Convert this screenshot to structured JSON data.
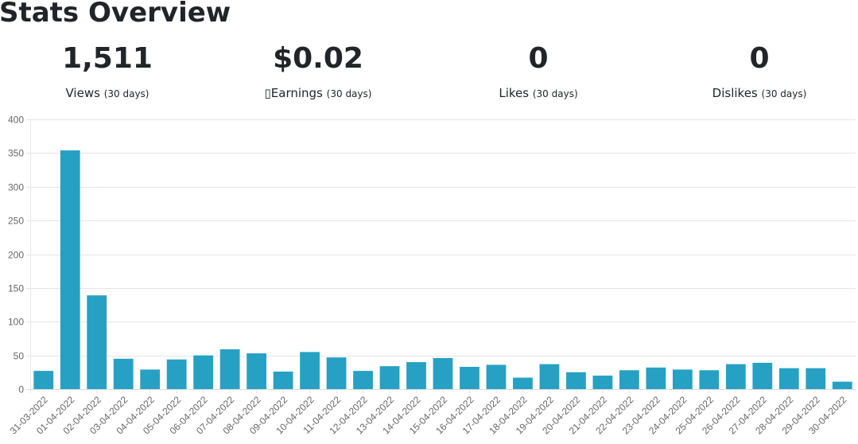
{
  "header": {
    "title": "Stats Overview"
  },
  "stats": [
    {
      "value": "1,511",
      "label": "Views",
      "period": "(30 days)"
    },
    {
      "value": "$0.02",
      "label": "▯Earnings",
      "period": "(30 days)"
    },
    {
      "value": "0",
      "label": "Likes",
      "period": "(30 days)"
    },
    {
      "value": "0",
      "label": "Dislikes",
      "period": "(30 days)"
    }
  ],
  "colors": {
    "bar": "#26a1c3",
    "grid": "#e5e5e5",
    "tick": "#666666"
  },
  "chart_data": {
    "type": "bar",
    "categories": [
      "31-03-2022",
      "01-04-2022",
      "02-04-2022",
      "03-04-2022",
      "04-04-2022",
      "05-04-2022",
      "06-04-2022",
      "07-04-2022",
      "08-04-2022",
      "09-04-2022",
      "10-04-2022",
      "11-04-2022",
      "12-04-2022",
      "13-04-2022",
      "14-04-2022",
      "15-04-2022",
      "16-04-2022",
      "17-04-2022",
      "18-04-2022",
      "19-04-2022",
      "20-04-2022",
      "21-04-2022",
      "22-04-2022",
      "23-04-2022",
      "24-04-2022",
      "25-04-2022",
      "26-04-2022",
      "27-04-2022",
      "28-04-2022",
      "29-04-2022",
      "30-04-2022"
    ],
    "values": [
      27,
      354,
      139,
      45,
      29,
      44,
      50,
      59,
      53,
      26,
      55,
      47,
      27,
      34,
      40,
      46,
      33,
      36,
      17,
      37,
      25,
      20,
      28,
      32,
      29,
      28,
      37,
      39,
      31,
      31,
      11
    ],
    "ylim": [
      0,
      400
    ],
    "yticks": [
      0,
      50,
      100,
      150,
      200,
      250,
      300,
      350,
      400
    ],
    "grid": true,
    "legend": "none"
  }
}
